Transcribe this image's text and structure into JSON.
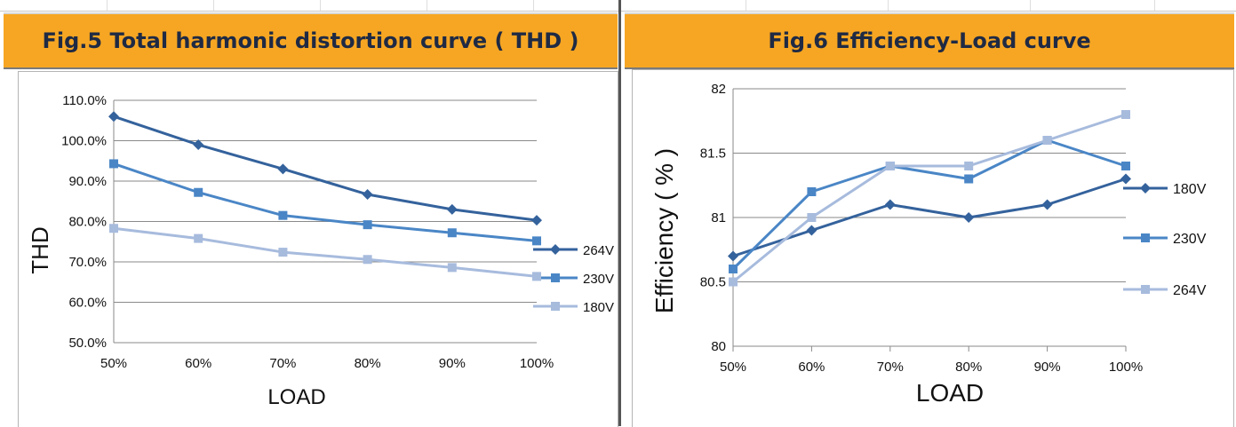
{
  "panels": {
    "thd": {
      "title": "Fig.5 Total harmonic distortion curve ( THD )"
    },
    "eff": {
      "title": "Fig.6 Efficiency-Load curve"
    }
  },
  "chart_data": [
    {
      "type": "line",
      "title": "",
      "xlabel": "LOAD",
      "ylabel": "THD",
      "categories": [
        "50%",
        "60%",
        "70%",
        "80%",
        "90%",
        "100%"
      ],
      "ylim": [
        0.5,
        1.1
      ],
      "yticks": [
        "50.0%",
        "60.0%",
        "70.0%",
        "80.0%",
        "90.0%",
        "100.0%",
        "110.0%"
      ],
      "ytick_values": [
        0.5,
        0.6,
        0.7,
        0.8,
        0.9,
        1.0,
        1.1
      ],
      "grid": true,
      "legend_position": "right",
      "series": [
        {
          "name": "264V",
          "color": "#34629c",
          "marker": "diamond",
          "values": [
            1.06,
            0.99,
            0.93,
            0.867,
            0.83,
            0.803
          ]
        },
        {
          "name": "230V",
          "color": "#4a86c6",
          "marker": "square",
          "values": [
            0.943,
            0.872,
            0.815,
            0.792,
            0.772,
            0.752
          ]
        },
        {
          "name": "180V",
          "color": "#a7bbdd",
          "marker": "square",
          "values": [
            0.783,
            0.758,
            0.724,
            0.706,
            0.686,
            0.664
          ]
        }
      ]
    },
    {
      "type": "line",
      "title": "",
      "xlabel": "LOAD",
      "ylabel": "Efficiency ( % )",
      "categories": [
        "50%",
        "60%",
        "70%",
        "80%",
        "90%",
        "100%"
      ],
      "ylim": [
        80,
        82
      ],
      "yticks": [
        "80",
        "80.5",
        "81",
        "81.5",
        "82"
      ],
      "ytick_values": [
        80,
        80.5,
        81,
        81.5,
        82
      ],
      "grid": true,
      "legend_position": "right",
      "series": [
        {
          "name": "180V",
          "color": "#34629c",
          "marker": "diamond",
          "values": [
            80.7,
            80.9,
            81.1,
            81.0,
            81.1,
            81.3
          ]
        },
        {
          "name": "230V",
          "color": "#4a86c6",
          "marker": "square",
          "values": [
            80.6,
            81.2,
            81.4,
            81.3,
            81.6,
            81.4
          ]
        },
        {
          "name": "264V",
          "color": "#a7bbdd",
          "marker": "square",
          "values": [
            80.5,
            81.0,
            81.4,
            81.4,
            81.6,
            81.8
          ]
        }
      ]
    }
  ]
}
